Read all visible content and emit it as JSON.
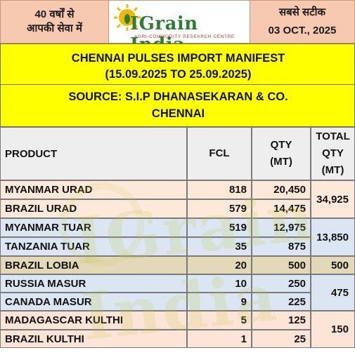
{
  "header": {
    "left_line1": "40 वर्षों से",
    "left_line2": "आपकी सेवा में",
    "logo_text": "IGrain India",
    "logo_tagline": "AGRI-COMMODITY RESEARCH CENTRE",
    "right_line1": "सबसे सटीक",
    "right_line2": "03 OCT., 2025"
  },
  "title": {
    "line1": "CHENNAI PULSES IMPORT MANIFEST",
    "line2": "(15.09.2025 TO 25.09.2025)",
    "line3": "SOURCE: S.I.P DHANASEKARAN & CO.",
    "line4": "CHENNAI"
  },
  "table": {
    "headers": {
      "product": "PRODUCT",
      "fcl": "FCL",
      "qty_line1": "QTY",
      "qty_line2": "(MT)",
      "total_line1": "TOTAL",
      "total_line2": "QTY",
      "total_line3": "(MT)"
    },
    "rows": [
      {
        "product": "MYANMAR URAD",
        "fcl": "818",
        "qty": "20,450"
      },
      {
        "product": "BRAZIL URAD",
        "fcl": "579",
        "qty": "14,475"
      },
      {
        "product": "MYANMAR TUAR",
        "fcl": "519",
        "qty": "12,975"
      },
      {
        "product": "TANZANIA TUAR",
        "fcl": "35",
        "qty": "875"
      },
      {
        "product": "BRAZIL LOBIA",
        "fcl": "20",
        "qty": "500"
      },
      {
        "product": "RUSSIA MASUR",
        "fcl": "10",
        "qty": "250"
      },
      {
        "product": "CANADA MASUR",
        "fcl": "9",
        "qty": "225"
      },
      {
        "product": "MADAGASCAR KULTHI",
        "fcl": "5",
        "qty": "125"
      },
      {
        "product": "BRAZIL KULTHI",
        "fcl": "1",
        "qty": "25"
      }
    ],
    "totals": [
      "34,925",
      "13,850",
      "500",
      "475",
      "150"
    ]
  },
  "watermark": "IGrain India"
}
